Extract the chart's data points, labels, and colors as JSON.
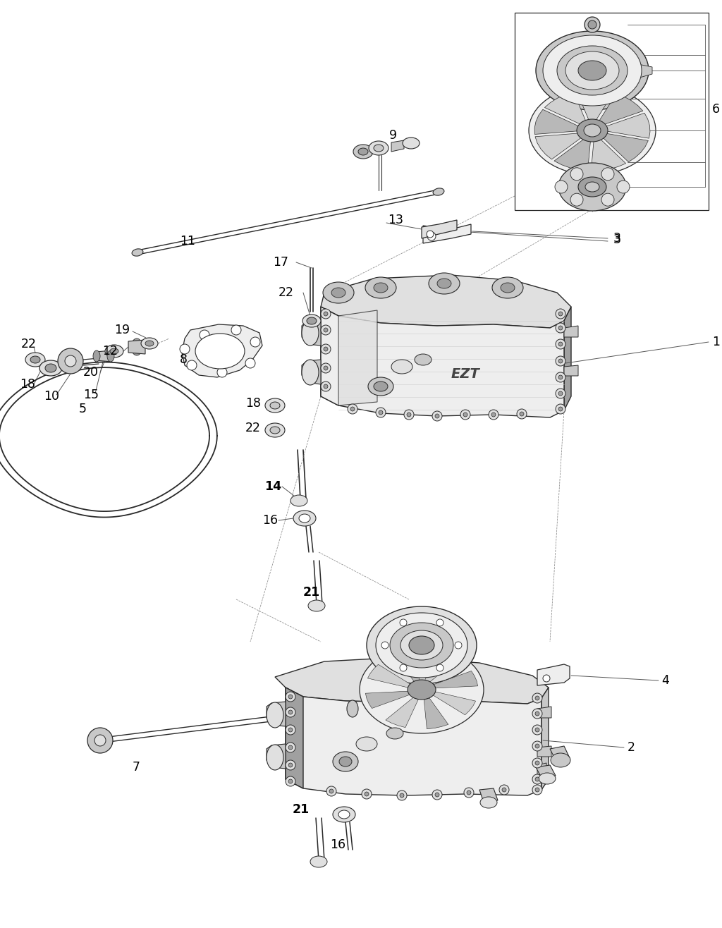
{
  "bg_color": "#ffffff",
  "line_color": "#2a2a2a",
  "label_color": "#000000",
  "label_fontsize": 12.5,
  "figsize": [
    10.24,
    13.16
  ],
  "dpi": 100,
  "gray_fill": "#e0e0e0",
  "dark_gray": "#a0a0a0",
  "mid_gray": "#c8c8c8",
  "light_gray": "#eeeeee",
  "leader_color": "#555555",
  "dashed_color": "#888888",
  "box_color": "#333333"
}
